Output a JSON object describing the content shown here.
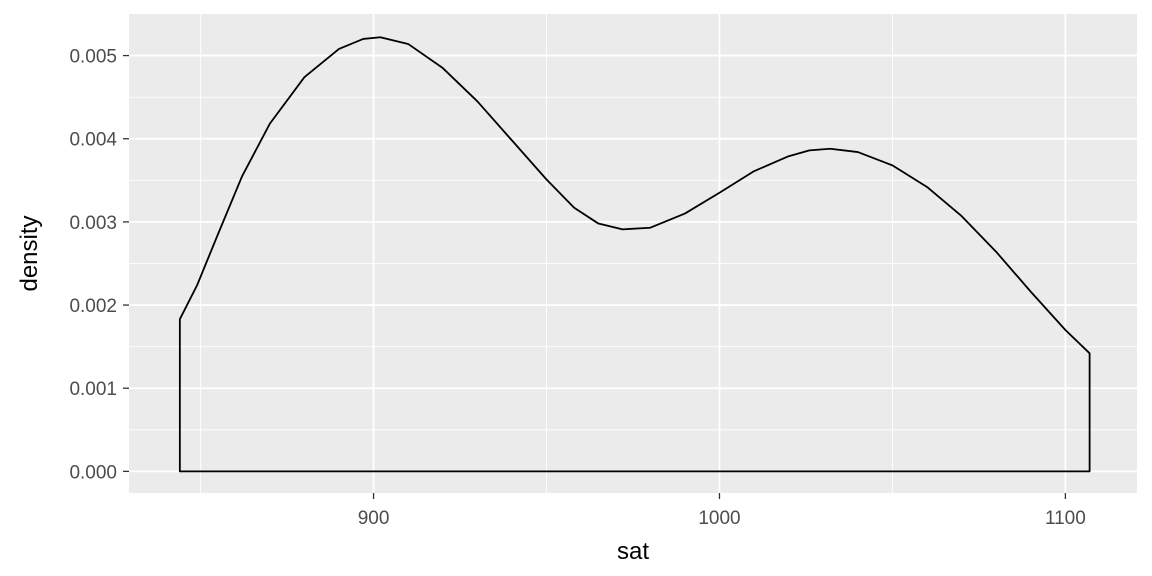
{
  "chart_data": {
    "type": "area",
    "title": "",
    "xlabel": "sat",
    "ylabel": "density",
    "xlim": [
      829.3,
      1120.7
    ],
    "ylim": [
      -0.00026,
      0.0055
    ],
    "x_ticks": [
      {
        "value": 900,
        "label": "900"
      },
      {
        "value": 1000,
        "label": "1000"
      },
      {
        "value": 1100,
        "label": "1100"
      }
    ],
    "x_minor_ticks": [
      850,
      950,
      1050
    ],
    "y_ticks": [
      {
        "value": 0,
        "label": "0.000"
      },
      {
        "value": 0.001,
        "label": "0.001"
      },
      {
        "value": 0.002,
        "label": "0.002"
      },
      {
        "value": 0.003,
        "label": "0.003"
      },
      {
        "value": 0.004,
        "label": "0.004"
      },
      {
        "value": 0.005,
        "label": "0.005"
      }
    ],
    "y_minor_ticks": [
      0.0005,
      0.0015,
      0.0025,
      0.0035,
      0.0045
    ],
    "grid": true,
    "colors": {
      "panel": "#ebebeb",
      "grid": "#ffffff",
      "line": "#000000",
      "tick_text": "#4d4d4d",
      "title_text": "#000000"
    },
    "series": [
      {
        "points": [
          [
            844,
            0.00183
          ],
          [
            849,
            0.00224
          ],
          [
            855,
            0.00285
          ],
          [
            862,
            0.00355
          ],
          [
            870,
            0.00418
          ],
          [
            880,
            0.00474
          ],
          [
            890,
            0.00508
          ],
          [
            897,
            0.0052
          ],
          [
            902,
            0.00522
          ],
          [
            910,
            0.00514
          ],
          [
            920,
            0.00485
          ],
          [
            930,
            0.00445
          ],
          [
            940,
            0.00398
          ],
          [
            950,
            0.00351
          ],
          [
            958,
            0.00317
          ],
          [
            965,
            0.00298
          ],
          [
            972,
            0.00291
          ],
          [
            980,
            0.00293
          ],
          [
            990,
            0.0031
          ],
          [
            1000,
            0.00335
          ],
          [
            1010,
            0.00361
          ],
          [
            1020,
            0.00379
          ],
          [
            1026,
            0.00386
          ],
          [
            1032,
            0.00388
          ],
          [
            1040,
            0.00384
          ],
          [
            1050,
            0.00368
          ],
          [
            1060,
            0.00342
          ],
          [
            1070,
            0.00307
          ],
          [
            1080,
            0.00264
          ],
          [
            1090,
            0.00216
          ],
          [
            1100,
            0.0017
          ],
          [
            1107,
            0.00142
          ]
        ]
      }
    ]
  }
}
